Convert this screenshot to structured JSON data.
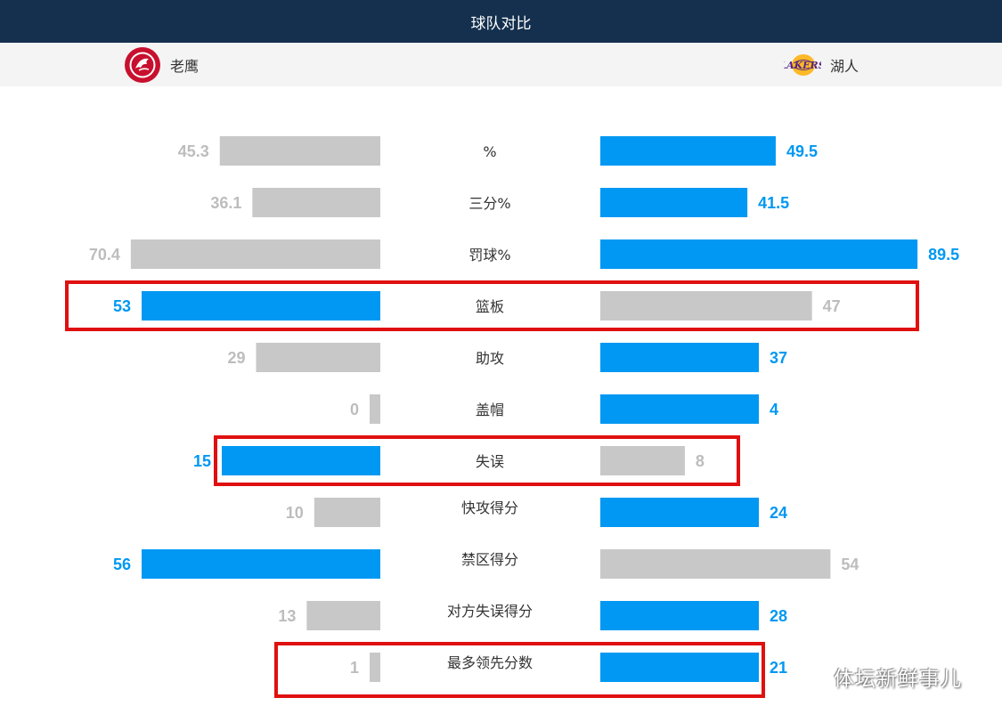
{
  "header": {
    "title": "球队对比"
  },
  "teams": {
    "home": {
      "name": "老鹰",
      "logo": "hawks-logo"
    },
    "away": {
      "name": "湖人",
      "logo": "lakers-logo"
    }
  },
  "colors": {
    "leader": "#0098f2",
    "trailer": "#c8c8c8",
    "highlight_box": "#e01010",
    "header_bg": "#14304e"
  },
  "chart_data": {
    "type": "bar",
    "orientation": "horizontal-diverging",
    "categories": [
      "%",
      "三分%",
      "罚球%",
      "篮板",
      "助攻",
      "盖帽",
      "失误",
      "快攻得分",
      "禁区得分",
      "对方失误得分",
      "最多领先分数"
    ],
    "series": [
      {
        "name": "老鹰",
        "values": [
          45.3,
          36.1,
          70.4,
          53,
          29,
          0,
          15,
          10,
          56,
          13,
          1
        ]
      },
      {
        "name": "湖人",
        "values": [
          49.5,
          41.5,
          89.5,
          47,
          37,
          4,
          8,
          24,
          54,
          28,
          21
        ]
      }
    ],
    "value_labels": {
      "home": [
        "45.3",
        "36.1",
        "70.4",
        "53",
        "29",
        "0",
        "15",
        "10",
        "56",
        "13",
        "1"
      ],
      "away": [
        "49.5",
        "41.5",
        "89.5",
        "47",
        "37",
        "4",
        "8",
        "24",
        "54",
        "28",
        "21"
      ]
    },
    "highlighted": [
      "篮板",
      "失误",
      "最多领先分数"
    ]
  },
  "watermark": "体坛新鲜事儿"
}
